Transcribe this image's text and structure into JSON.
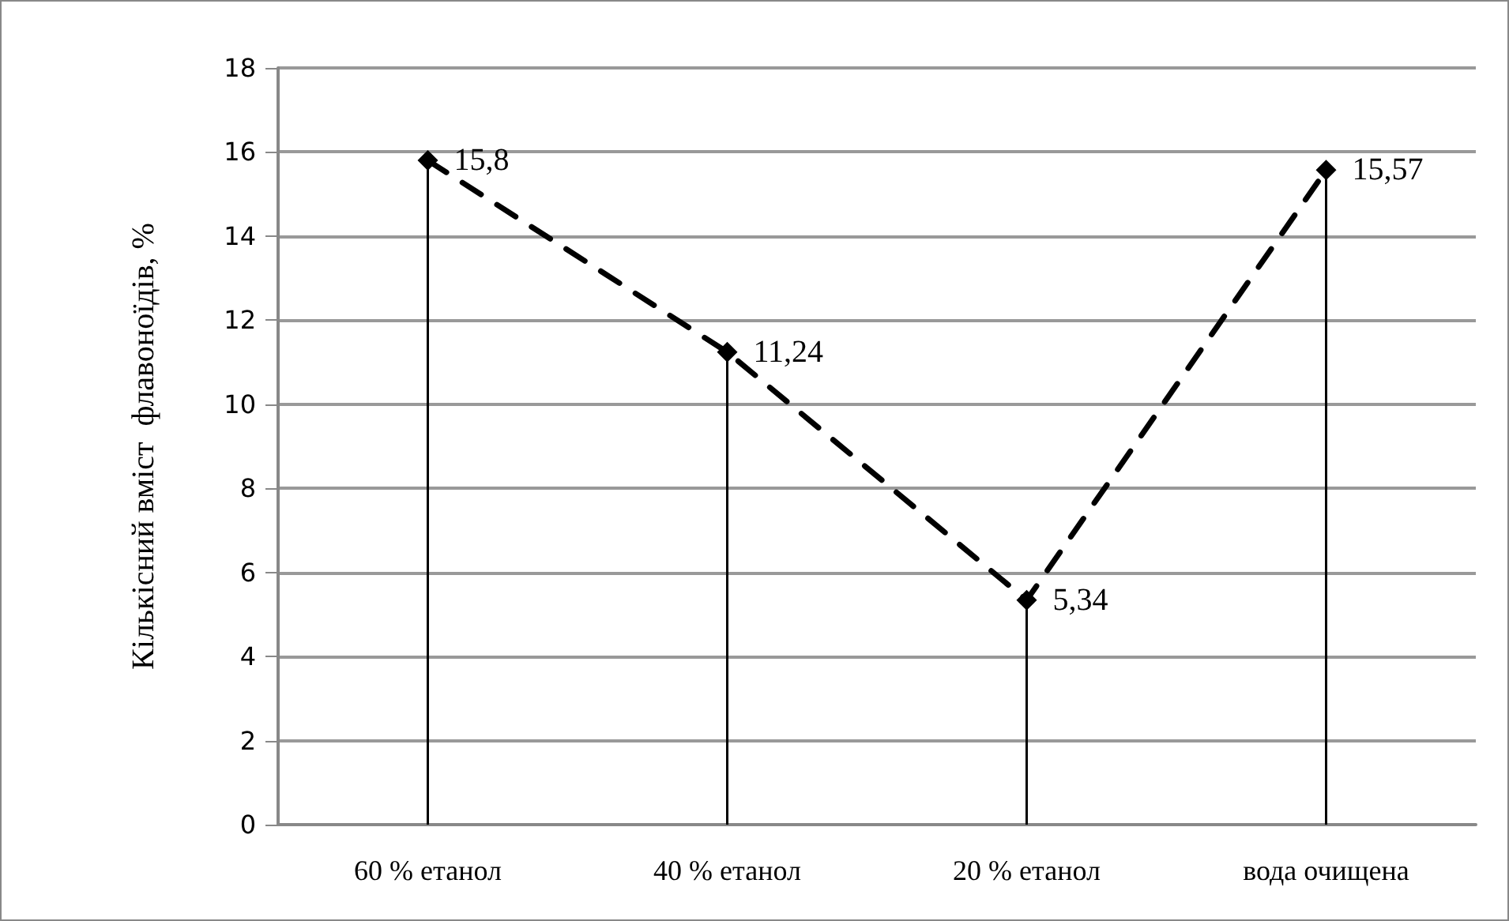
{
  "chart_data": {
    "type": "lollipop",
    "ylabel": "Кількісний вміст  флавоноїдів, %",
    "categories": [
      "60 % етанол",
      "40 % етанол",
      "20 % етанол",
      "вода очищена"
    ],
    "values": [
      15.8,
      11.24,
      5.34,
      15.57
    ],
    "value_labels": [
      "15,8",
      "11,24",
      "5,34",
      "15,57"
    ],
    "color": "#000000",
    "ylim": [
      0,
      18
    ],
    "yticks": [
      0,
      2,
      4,
      6,
      8,
      10,
      12,
      14,
      16,
      18
    ],
    "grid": "y",
    "marker": "diamond",
    "line_style": "dashed"
  }
}
